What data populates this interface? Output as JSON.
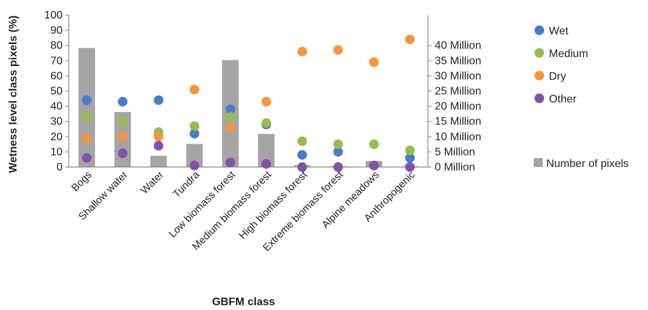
{
  "chart_data": {
    "type": "scatter",
    "categories": [
      "Bogs",
      "Shallow water",
      "Water",
      "Tundra",
      "Low biomass forest",
      "Medium biomass forest",
      "High biomass forest",
      "Extreme biomass forest",
      "Alpine meadows",
      "Anthropogenic"
    ],
    "xlabel": "GBFM class",
    "ylabel": "Wetness level class pixels (%)",
    "ylim": [
      0,
      100
    ],
    "yticks": [
      "0",
      "10",
      "20",
      "30",
      "40",
      "50",
      "60",
      "70",
      "80",
      "90",
      "100"
    ],
    "y2lim": [
      0,
      40
    ],
    "y2ticks": [
      "0 Million",
      "5 Million",
      "10 Million",
      "15 Million",
      "20 Million",
      "25 Million",
      "30 Million",
      "35 Million",
      "40 Million"
    ],
    "bar_series": {
      "name": "Number of pixels",
      "axis": "secondary",
      "unit": "Million",
      "color": "#a6a4a6",
      "values": [
        39.2,
        18.1,
        3.7,
        7.6,
        35.2,
        10.9,
        0.6,
        0.3,
        2.0,
        0.3
      ]
    },
    "series": [
      {
        "name": "Wet",
        "color": "#4a7ec4",
        "values": [
          44,
          43,
          44,
          22,
          38,
          28,
          8,
          10,
          null,
          6
        ]
      },
      {
        "name": "Medium",
        "color": "#92c050",
        "values": [
          33,
          30,
          23,
          27,
          33,
          29,
          17,
          15,
          15,
          11
        ]
      },
      {
        "name": "Dry",
        "color": "#f39640",
        "values": [
          19,
          20,
          20,
          51,
          26,
          43,
          76,
          77,
          69,
          84
        ]
      },
      {
        "name": "Other",
        "color": "#7e54a8",
        "values": [
          6,
          9,
          14,
          1,
          3,
          2,
          0,
          0,
          1,
          0
        ]
      }
    ],
    "legend": {
      "position": "right"
    },
    "grid": false
  }
}
